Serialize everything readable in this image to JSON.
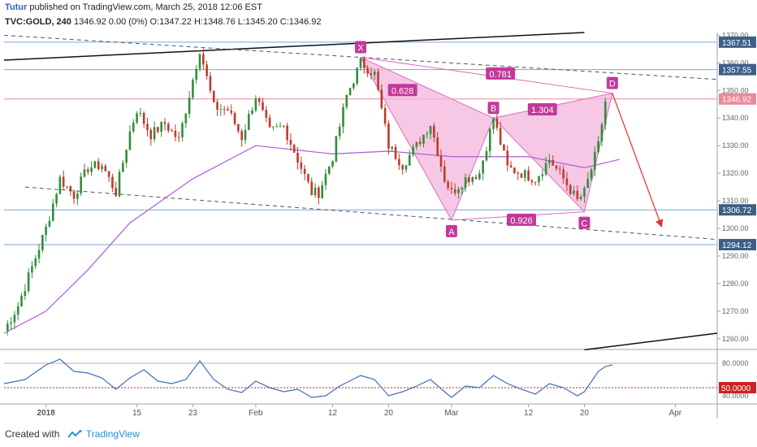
{
  "header": {
    "author": "Tutur",
    "published": "published on TradingView.com, March 25, 2018 12:06 EST",
    "symbol": "TVC:GOLD, 240",
    "quote": "1346.92 0.00 (0%) O:1347.22 H:1348.76 L:1345.20 C:1346.92"
  },
  "footer": {
    "created_with": "Created with",
    "brand": "TradingView"
  },
  "colors": {
    "candle_up": "#2f8f3a",
    "candle_down": "#c0392b",
    "ma": "#b05ad6",
    "pattern_fill": "#f3b6dc",
    "pattern_stroke": "#d86fb8",
    "label_bg": "#c2399a",
    "level_line": "#7fa6d8",
    "price_line": "#e88a9a",
    "rsi_line": "#3f6fb8",
    "rsi_level": "#cc2222",
    "projection": "#e03030",
    "badge_bg": "#3d5f86"
  },
  "chart_data": [
    {
      "type": "line",
      "title": "",
      "y_ticks": [
        "1370.00",
        "1360.00",
        "1350.00",
        "1340.00",
        "1330.00",
        "1320.00",
        "1310.00",
        "1300.00",
        "1290.00",
        "1280.00",
        "1270.00",
        "1260.00"
      ],
      "ylim": [
        1257,
        1371
      ],
      "x_ticks": [
        "2018",
        "15",
        "23",
        "Feb",
        "12",
        "20",
        "Mar",
        "12",
        "20",
        "Apr"
      ],
      "x_tick_dates": [
        "2018-01-02",
        "2018-01-15",
        "2018-01-23",
        "2018-02-01",
        "2018-02-12",
        "2018-02-20",
        "2018-03-01",
        "2018-03-12",
        "2018-03-20",
        "2018-04-02"
      ],
      "xlim": [
        "2017-12-27",
        "2018-04-08"
      ],
      "series": [
        {
          "kind": "price",
          "points": [
            [
              "2017-12-27",
              1263
            ],
            [
              "2017-12-29",
              1272
            ],
            [
              "2018-01-02",
              1300
            ],
            [
              "2018-01-04",
              1318
            ],
            [
              "2018-01-06",
              1312
            ],
            [
              "2018-01-08",
              1322
            ],
            [
              "2018-01-10",
              1323
            ],
            [
              "2018-01-12",
              1313
            ],
            [
              "2018-01-14",
              1335
            ],
            [
              "2018-01-15",
              1343
            ],
            [
              "2018-01-17",
              1334
            ],
            [
              "2018-01-19",
              1338
            ],
            [
              "2018-01-21",
              1332
            ],
            [
              "2018-01-23",
              1354
            ],
            [
              "2018-01-24",
              1365
            ],
            [
              "2018-01-26",
              1344
            ],
            [
              "2018-01-28",
              1343
            ],
            [
              "2018-01-30",
              1333
            ],
            [
              "2018-02-01",
              1348
            ],
            [
              "2018-02-03",
              1335
            ],
            [
              "2018-02-05",
              1337
            ],
            [
              "2018-02-07",
              1325
            ],
            [
              "2018-02-09",
              1313
            ],
            [
              "2018-02-10",
              1313
            ],
            [
              "2018-02-12",
              1326
            ],
            [
              "2018-02-14",
              1348
            ],
            [
              "2018-02-16",
              1360
            ],
            [
              "2018-02-18",
              1356
            ],
            [
              "2018-02-20",
              1330
            ],
            [
              "2018-02-22",
              1323
            ],
            [
              "2018-02-24",
              1330
            ],
            [
              "2018-02-26",
              1338
            ],
            [
              "2018-02-28",
              1318
            ],
            [
              "2018-03-01",
              1313
            ],
            [
              "2018-03-03",
              1318
            ],
            [
              "2018-03-05",
              1320
            ],
            [
              "2018-03-07",
              1340
            ],
            [
              "2018-03-09",
              1322
            ],
            [
              "2018-03-11",
              1320
            ],
            [
              "2018-03-13",
              1318
            ],
            [
              "2018-03-15",
              1325
            ],
            [
              "2018-03-17",
              1318
            ],
            [
              "2018-03-19",
              1310
            ],
            [
              "2018-03-20",
              1313
            ],
            [
              "2018-03-22",
              1330
            ],
            [
              "2018-03-23",
              1346
            ]
          ]
        },
        {
          "kind": "ma",
          "points": [
            [
              "2017-12-27",
              1262
            ],
            [
              "2018-01-02",
              1270
            ],
            [
              "2018-01-08",
              1285
            ],
            [
              "2018-01-14",
              1302
            ],
            [
              "2018-01-23",
              1318
            ],
            [
              "2018-02-01",
              1330
            ],
            [
              "2018-02-12",
              1327
            ],
            [
              "2018-02-20",
              1328
            ],
            [
              "2018-03-01",
              1326
            ],
            [
              "2018-03-12",
              1326
            ],
            [
              "2018-03-20",
              1322
            ],
            [
              "2018-03-25",
              1325
            ]
          ]
        }
      ],
      "levels": [
        {
          "label": "1367.51",
          "value": 1367.51
        },
        {
          "label": "1357.55",
          "value": 1357.55
        },
        {
          "label": "1346.92",
          "value": 1346.92,
          "current": true
        },
        {
          "label": "1306.72",
          "value": 1306.72
        },
        {
          "label": "1294.12",
          "value": 1294.12
        }
      ],
      "trendlines": [
        {
          "style": "solid",
          "from": [
            "2017-12-27",
            1361
          ],
          "to": [
            "2018-03-20",
            1371
          ]
        },
        {
          "style": "dashed",
          "from": [
            "2017-12-27",
            1370
          ],
          "to": [
            "2018-04-08",
            1354
          ]
        },
        {
          "style": "dashed",
          "from": [
            "2017-12-30",
            1315
          ],
          "to": [
            "2018-04-08",
            1296
          ]
        },
        {
          "style": "solid",
          "from": [
            "2018-03-20",
            1256
          ],
          "to": [
            "2018-04-08",
            1262
          ]
        }
      ],
      "pattern": {
        "points": [
          {
            "label": "X",
            "date": "2018-02-16",
            "value": 1362
          },
          {
            "label": "A",
            "date": "2018-03-01",
            "value": 1303
          },
          {
            "label": "B",
            "date": "2018-03-07",
            "value": 1340
          },
          {
            "label": "C",
            "date": "2018-03-20",
            "value": 1306
          },
          {
            "label": "D",
            "date": "2018-03-24",
            "value": 1349
          }
        ],
        "ratios": [
          {
            "label": "0.628",
            "date": "2018-02-22",
            "value": 1350
          },
          {
            "label": "1.304",
            "date": "2018-03-14",
            "value": 1343
          },
          {
            "label": "0.781",
            "date": "2018-03-08",
            "value": 1356
          },
          {
            "label": "0.926",
            "date": "2018-03-11",
            "value": 1303
          }
        ]
      },
      "projection": {
        "from": [
          "2018-03-24",
          1349
        ],
        "to": [
          "2018-03-31",
          1301
        ]
      }
    },
    {
      "type": "line",
      "title": "",
      "y_ticks": [
        "80.0000",
        "40.0000"
      ],
      "ylim": [
        32,
        90
      ],
      "level": {
        "label": "50.0000",
        "value": 50
      },
      "series": [
        {
          "kind": "rsi",
          "points": [
            [
              "2017-12-27",
              55
            ],
            [
              "2017-12-30",
              60
            ],
            [
              "2018-01-02",
              78
            ],
            [
              "2018-01-04",
              85
            ],
            [
              "2018-01-06",
              70
            ],
            [
              "2018-01-08",
              68
            ],
            [
              "2018-01-10",
              62
            ],
            [
              "2018-01-12",
              48
            ],
            [
              "2018-01-14",
              62
            ],
            [
              "2018-01-16",
              72
            ],
            [
              "2018-01-18",
              58
            ],
            [
              "2018-01-20",
              55
            ],
            [
              "2018-01-22",
              60
            ],
            [
              "2018-01-24",
              83
            ],
            [
              "2018-01-26",
              60
            ],
            [
              "2018-01-28",
              48
            ],
            [
              "2018-01-30",
              44
            ],
            [
              "2018-02-01",
              58
            ],
            [
              "2018-02-03",
              50
            ],
            [
              "2018-02-05",
              45
            ],
            [
              "2018-02-07",
              48
            ],
            [
              "2018-02-09",
              38
            ],
            [
              "2018-02-11",
              40
            ],
            [
              "2018-02-13",
              52
            ],
            [
              "2018-02-16",
              65
            ],
            [
              "2018-02-18",
              60
            ],
            [
              "2018-02-20",
              40
            ],
            [
              "2018-02-22",
              45
            ],
            [
              "2018-02-24",
              52
            ],
            [
              "2018-02-26",
              60
            ],
            [
              "2018-02-28",
              45
            ],
            [
              "2018-03-01",
              38
            ],
            [
              "2018-03-03",
              52
            ],
            [
              "2018-03-05",
              50
            ],
            [
              "2018-03-07",
              65
            ],
            [
              "2018-03-09",
              55
            ],
            [
              "2018-03-11",
              48
            ],
            [
              "2018-03-13",
              42
            ],
            [
              "2018-03-15",
              55
            ],
            [
              "2018-03-17",
              50
            ],
            [
              "2018-03-19",
              40
            ],
            [
              "2018-03-20",
              45
            ],
            [
              "2018-03-22",
              70
            ],
            [
              "2018-03-23",
              76
            ],
            [
              "2018-03-24",
              78
            ]
          ]
        }
      ]
    }
  ]
}
